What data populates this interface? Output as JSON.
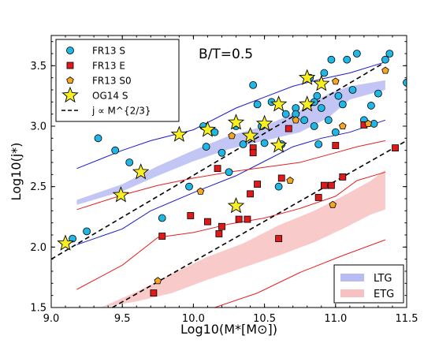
{
  "chart_data": {
    "type": "scatter",
    "annotation": "B/T=0.5",
    "xlabel": "Log10(M*[M⊙])",
    "ylabel": "Log10(j*)",
    "xlim": [
      9.0,
      11.5
    ],
    "ylim": [
      1.5,
      3.75
    ],
    "xticks": [
      "9.0",
      "9.5",
      "10.0",
      "10.5",
      "11.0",
      "11.5"
    ],
    "yticks": [
      "1.5",
      "2.0",
      "2.5",
      "3.0",
      "3.5"
    ],
    "grid": false,
    "legend_position": "top-left",
    "legend": [
      "FR13 S",
      "FR13 E",
      "FR13 S0",
      "OG14 S",
      "j ∝ M^{2/3}"
    ],
    "band_legend_position": "bottom-right",
    "band_legend": [
      "LTG",
      "ETG"
    ],
    "colors": {
      "fr13_s": "#1fb8e6",
      "fr13_e": "#e01a1a",
      "fr13_s0": "#f5a623",
      "og14_s": "#f7ef21",
      "ltg_line": "#1a1acc",
      "ltg_band": "#b9bcf2",
      "etg_line": "#e62020",
      "etg_band": "#f7c1c1"
    },
    "series": [
      {
        "name": "FR13 S",
        "marker": "circle",
        "points": [
          [
            9.15,
            2.07
          ],
          [
            9.25,
            2.13
          ],
          [
            9.33,
            2.9
          ],
          [
            9.45,
            2.8
          ],
          [
            9.55,
            2.7
          ],
          [
            9.78,
            2.24
          ],
          [
            9.97,
            2.5
          ],
          [
            10.07,
            3.0
          ],
          [
            10.09,
            2.83
          ],
          [
            10.15,
            2.95
          ],
          [
            10.2,
            2.78
          ],
          [
            10.25,
            2.62
          ],
          [
            10.3,
            3.0
          ],
          [
            10.35,
            2.85
          ],
          [
            10.42,
            3.34
          ],
          [
            10.45,
            3.18
          ],
          [
            10.48,
            3.0
          ],
          [
            10.5,
            2.86
          ],
          [
            10.55,
            3.2
          ],
          [
            10.6,
            2.5
          ],
          [
            10.62,
            2.85
          ],
          [
            10.65,
            3.1
          ],
          [
            10.72,
            3.15
          ],
          [
            10.78,
            3.05
          ],
          [
            10.82,
            3.4
          ],
          [
            10.85,
            3.0
          ],
          [
            10.87,
            3.25
          ],
          [
            10.88,
            2.85
          ],
          [
            10.9,
            3.15
          ],
          [
            10.92,
            3.44
          ],
          [
            10.95,
            3.05
          ],
          [
            10.97,
            3.55
          ],
          [
            11.0,
            2.95
          ],
          [
            11.02,
            3.25
          ],
          [
            11.05,
            3.18
          ],
          [
            11.08,
            3.55
          ],
          [
            11.12,
            3.3
          ],
          [
            11.15,
            3.6
          ],
          [
            11.2,
            3.05
          ],
          [
            11.25,
            3.17
          ],
          [
            11.27,
            3.02
          ],
          [
            11.3,
            3.27
          ],
          [
            11.35,
            3.55
          ],
          [
            11.38,
            3.6
          ],
          [
            11.5,
            3.36
          ],
          [
            10.72,
            3.1
          ],
          [
            10.85,
            3.2
          ]
        ]
      },
      {
        "name": "FR13 E",
        "marker": "square",
        "points": [
          [
            9.72,
            1.62
          ],
          [
            9.78,
            2.09
          ],
          [
            9.98,
            2.26
          ],
          [
            10.1,
            2.21
          ],
          [
            10.17,
            2.65
          ],
          [
            10.18,
            2.11
          ],
          [
            10.2,
            2.17
          ],
          [
            10.32,
            2.23
          ],
          [
            10.38,
            2.23
          ],
          [
            10.4,
            2.44
          ],
          [
            10.42,
            2.82
          ],
          [
            10.42,
            2.78
          ],
          [
            10.45,
            2.52
          ],
          [
            10.6,
            2.07
          ],
          [
            10.62,
            2.57
          ],
          [
            10.67,
            2.98
          ],
          [
            10.88,
            2.41
          ],
          [
            10.92,
            2.51
          ],
          [
            10.97,
            2.51
          ],
          [
            11.0,
            2.84
          ],
          [
            11.05,
            2.58
          ],
          [
            11.2,
            3.01
          ],
          [
            11.42,
            2.82
          ]
        ]
      },
      {
        "name": "FR13 S0",
        "marker": "pentagon",
        "points": [
          [
            9.75,
            1.72
          ],
          [
            10.05,
            2.46
          ],
          [
            10.27,
            2.92
          ],
          [
            10.68,
            2.55
          ],
          [
            10.72,
            3.05
          ],
          [
            10.98,
            2.35
          ],
          [
            11.0,
            3.37
          ],
          [
            11.05,
            3.0
          ],
          [
            11.23,
            3.02
          ],
          [
            11.35,
            3.46
          ]
        ]
      },
      {
        "name": "OG14 S",
        "marker": "star",
        "points": [
          [
            9.1,
            2.03
          ],
          [
            9.49,
            2.43
          ],
          [
            9.63,
            2.62
          ],
          [
            9.9,
            2.93
          ],
          [
            10.1,
            2.97
          ],
          [
            10.3,
            2.34
          ],
          [
            10.3,
            3.03
          ],
          [
            10.4,
            2.92
          ],
          [
            10.5,
            3.02
          ],
          [
            10.6,
            3.18
          ],
          [
            10.6,
            2.84
          ],
          [
            10.8,
            3.18
          ],
          [
            10.8,
            3.4
          ],
          [
            10.9,
            3.35
          ]
        ]
      }
    ],
    "reference_line": {
      "name": "j ∝ M^{2/3}",
      "x": [
        9.0,
        11.35
      ],
      "y": [
        1.9,
        3.53
      ]
    },
    "reference_line_2": {
      "x": [
        9.43,
        11.5
      ],
      "y": [
        1.5,
        2.88
      ]
    },
    "ltg_lines": [
      {
        "x": [
          9.18,
          9.5,
          9.7,
          10.0,
          10.3,
          10.5,
          10.7,
          10.9,
          11.1,
          11.35
        ],
        "y": [
          2.65,
          2.8,
          2.88,
          2.97,
          3.15,
          3.24,
          3.33,
          3.39,
          3.44,
          3.53
        ]
      },
      {
        "x": [
          9.18,
          9.5,
          9.7,
          10.0,
          10.3,
          10.5,
          10.7,
          10.9,
          11.1,
          11.35
        ],
        "y": [
          2.02,
          2.15,
          2.3,
          2.45,
          2.59,
          2.71,
          2.83,
          2.9,
          2.95,
          3.05
        ]
      }
    ],
    "ltg_band": {
      "x": [
        9.18,
        9.5,
        9.75,
        10.0,
        10.25,
        10.5,
        10.75,
        10.95,
        11.1,
        11.35
      ],
      "lower": [
        2.35,
        2.46,
        2.59,
        2.71,
        2.81,
        2.88,
        2.95,
        3.07,
        3.22,
        3.3
      ],
      "upper": [
        2.39,
        2.52,
        2.67,
        2.8,
        2.92,
        3.0,
        3.13,
        3.27,
        3.33,
        3.38
      ]
    },
    "etg_lines": [
      {
        "x": [
          9.18,
          9.5,
          9.75,
          10.0,
          10.25,
          10.5,
          10.75,
          11.0,
          11.15,
          11.35
        ],
        "y": [
          2.31,
          2.43,
          2.51,
          2.57,
          2.62,
          2.66,
          2.7,
          2.78,
          2.83,
          2.88
        ]
      },
      {
        "x": [
          9.18,
          9.5,
          9.75,
          10.0,
          10.25,
          10.5,
          10.75,
          11.0,
          11.15,
          11.35
        ],
        "y": [
          1.65,
          1.85,
          2.08,
          2.12,
          2.19,
          2.24,
          2.32,
          2.42,
          2.55,
          2.62
        ]
      },
      {
        "x": [
          10.15,
          10.45,
          10.75,
          11.05,
          11.35
        ],
        "y": [
          1.5,
          1.62,
          1.79,
          1.93,
          2.06
        ]
      }
    ],
    "etg_band": {
      "x": [
        9.35,
        9.6,
        9.85,
        10.1,
        10.35,
        10.6,
        10.85,
        11.05,
        11.25,
        11.35
      ],
      "lower": [
        1.5,
        1.55,
        1.62,
        1.73,
        1.83,
        1.93,
        2.04,
        2.15,
        2.27,
        2.31
      ],
      "upper": [
        1.5,
        1.63,
        1.78,
        1.92,
        2.03,
        2.18,
        2.3,
        2.42,
        2.55,
        2.64
      ]
    }
  }
}
